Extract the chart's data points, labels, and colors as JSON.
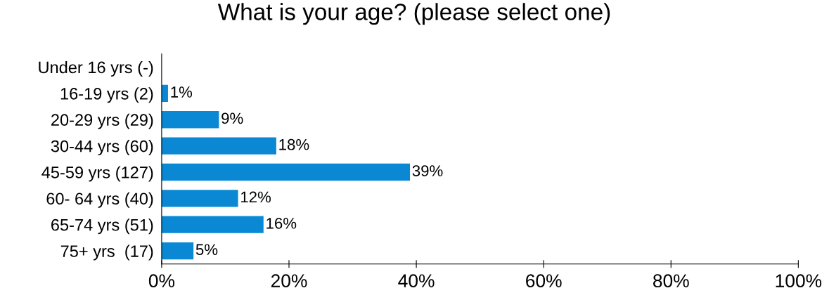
{
  "chart_data": {
    "type": "bar",
    "orientation": "horizontal",
    "title": "What is your age? (please select one)",
    "categories": [
      "Under 16 yrs (-)",
      "16-19 yrs (2)",
      "20-29 yrs (29)",
      "30-44 yrs (60)",
      "45-59 yrs (127)",
      "60- 64 yrs (40)",
      "65-74 yrs (51)",
      "75+ yrs  (17)"
    ],
    "values": [
      null,
      1,
      9,
      18,
      39,
      12,
      16,
      5
    ],
    "value_labels": [
      null,
      "1%",
      "9%",
      "18%",
      "39%",
      "12%",
      "16%",
      "5%"
    ],
    "color": "#0a88d3",
    "xlim": [
      0,
      100
    ],
    "xticks": [
      {
        "value": 0,
        "label": "0%"
      },
      {
        "value": 20,
        "label": "20%"
      },
      {
        "value": 40,
        "label": "40%"
      },
      {
        "value": 60,
        "label": "60%"
      },
      {
        "value": 80,
        "label": "80%"
      },
      {
        "value": 100,
        "label": "100%"
      }
    ],
    "grid": false,
    "legend": false
  }
}
